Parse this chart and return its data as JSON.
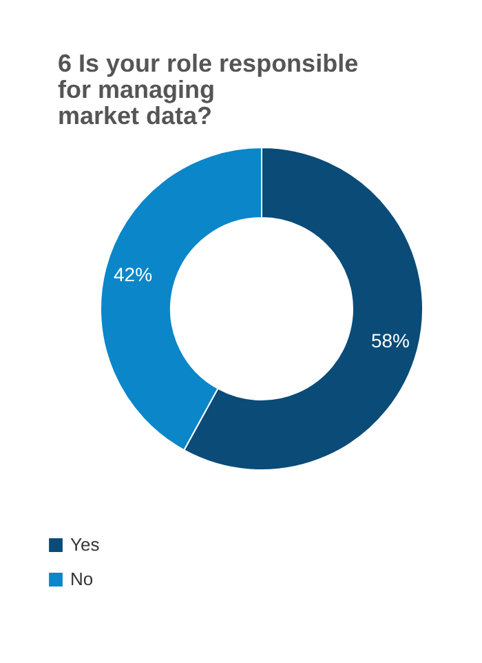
{
  "chart_data": {
    "type": "donut",
    "title": "6  Is your role responsible for managing market data?",
    "categories": [
      "Yes",
      "No"
    ],
    "values": [
      58,
      42
    ],
    "colors": [
      "#0a4b78",
      "#0a86c9"
    ],
    "value_labels": [
      "58%",
      "42%"
    ],
    "legend": "bottom left"
  }
}
